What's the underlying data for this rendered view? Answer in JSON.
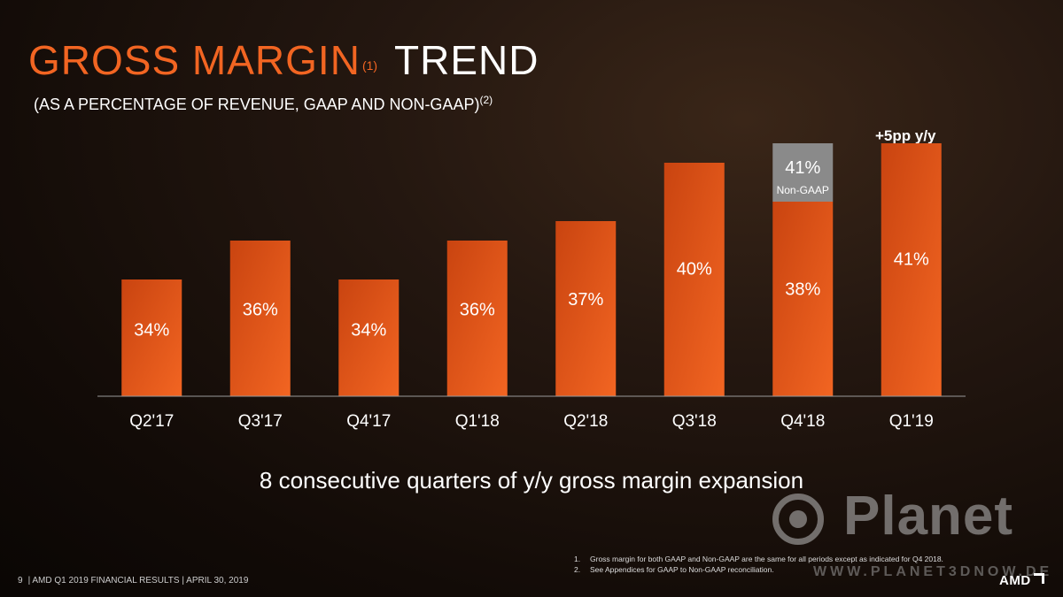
{
  "header": {
    "title_accent": "GROSS MARGIN",
    "title_footnote": "(1)",
    "title_rest": "TREND",
    "subtitle": "(AS A PERCENTAGE OF REVENUE, GAAP AND NON-GAAP)",
    "subtitle_footnote": "(2)"
  },
  "callout": {
    "yoy": "+5pp y/y"
  },
  "tagline": "8 consecutive quarters of y/y gross margin expansion",
  "footnotes": [
    {
      "num": "1.",
      "text": "Gross margin for both GAAP and Non-GAAP are the same for all periods except as indicated for Q4 2018."
    },
    {
      "num": "2.",
      "text": "See Appendices for GAAP to Non-GAAP reconciliation."
    }
  ],
  "footer": {
    "page": "9",
    "text": "| AMD Q1 2019 FINANCIAL RESULTS | APRIL 30, 2019"
  },
  "watermark": {
    "name": "Planet",
    "url": "WWW.PLANET3DNOW.DE"
  },
  "logo": {
    "text": "AMD"
  },
  "colors": {
    "bar": "#f26522",
    "bar_dark": "#c94410",
    "nongaap": "#8a8a8a",
    "axis": "#9a9a9a"
  },
  "chart_data": {
    "type": "bar",
    "categories": [
      "Q2'17",
      "Q3'17",
      "Q4'17",
      "Q1'18",
      "Q2'18",
      "Q3'18",
      "Q4'18",
      "Q1'19"
    ],
    "series": [
      {
        "values": [
          34,
          36,
          34,
          36,
          37,
          40,
          38,
          41
        ],
        "labels": [
          "34%",
          "36%",
          "34%",
          "36%",
          "37%",
          "40%",
          "38%",
          "41%"
        ]
      }
    ],
    "overlay": {
      "category": "Q4'18",
      "name": "Non-GAAP",
      "value": 41,
      "label": "41%"
    },
    "ylim": [
      28,
      42
    ]
  }
}
